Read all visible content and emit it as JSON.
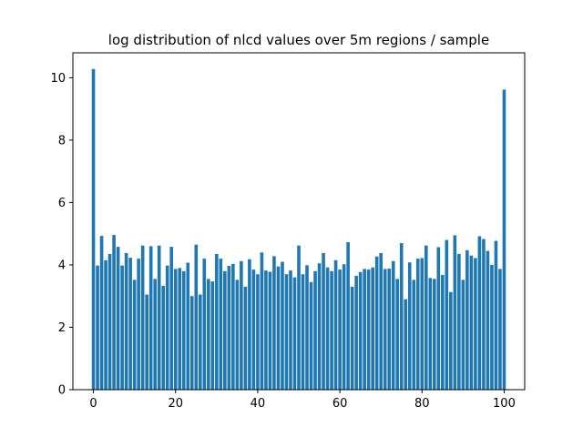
{
  "chart_data": {
    "type": "bar",
    "title": "log distribution of nlcd values over 5m regions / sample",
    "xlabel": "",
    "ylabel": "",
    "xlim": [
      -5,
      105
    ],
    "ylim": [
      0,
      10.8
    ],
    "xticks": [
      0,
      20,
      40,
      60,
      80,
      100
    ],
    "yticks": [
      0,
      2,
      4,
      6,
      8,
      10
    ],
    "bar_color": "#1f77b4",
    "grid": false,
    "x": [
      0,
      1,
      2,
      3,
      4,
      5,
      6,
      7,
      8,
      9,
      10,
      11,
      12,
      13,
      14,
      15,
      16,
      17,
      18,
      19,
      20,
      21,
      22,
      23,
      24,
      25,
      26,
      27,
      28,
      29,
      30,
      31,
      32,
      33,
      34,
      35,
      36,
      37,
      38,
      39,
      40,
      41,
      42,
      43,
      44,
      45,
      46,
      47,
      48,
      49,
      50,
      51,
      52,
      53,
      54,
      55,
      56,
      57,
      58,
      59,
      60,
      61,
      62,
      63,
      64,
      65,
      66,
      67,
      68,
      69,
      70,
      71,
      72,
      73,
      74,
      75,
      76,
      77,
      78,
      79,
      80,
      81,
      82,
      83,
      84,
      85,
      86,
      87,
      88,
      89,
      90,
      91,
      92,
      93,
      94,
      95,
      96,
      97,
      98,
      99,
      100
    ],
    "values": [
      10.28,
      3.98,
      4.93,
      4.15,
      4.35,
      4.96,
      4.58,
      3.98,
      4.38,
      4.23,
      3.52,
      4.2,
      4.62,
      3.05,
      4.6,
      3.55,
      4.62,
      3.33,
      3.98,
      4.58,
      3.87,
      3.9,
      3.8,
      4.07,
      3.0,
      4.65,
      3.05,
      4.2,
      3.55,
      3.47,
      4.35,
      4.2,
      3.8,
      3.97,
      4.03,
      3.52,
      4.12,
      3.3,
      4.18,
      3.85,
      3.7,
      4.4,
      3.82,
      3.78,
      4.28,
      3.95,
      4.1,
      3.7,
      3.82,
      3.6,
      4.62,
      3.7,
      3.99,
      3.45,
      3.8,
      4.05,
      4.38,
      3.92,
      3.8,
      4.15,
      3.85,
      4.02,
      4.73,
      3.3,
      3.65,
      3.77,
      3.87,
      3.85,
      3.92,
      4.27,
      4.38,
      3.87,
      3.88,
      4.12,
      3.55,
      4.7,
      2.9,
      4.08,
      3.52,
      4.2,
      4.22,
      4.62,
      3.58,
      3.55,
      4.57,
      3.68,
      4.8,
      3.13,
      4.95,
      4.35,
      3.52,
      4.47,
      4.3,
      4.22,
      4.92,
      4.83,
      4.45,
      4.0,
      4.77,
      3.87,
      9.62
    ]
  }
}
